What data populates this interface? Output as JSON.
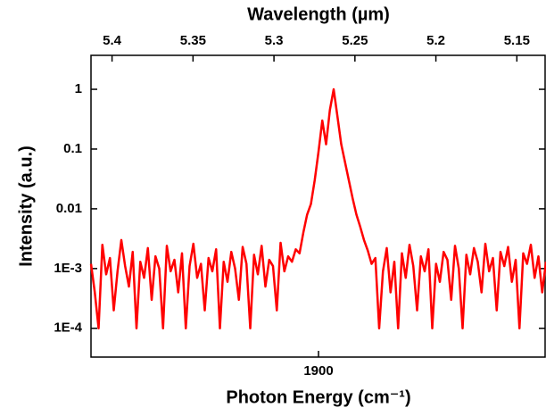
{
  "chart_data": {
    "type": "line",
    "xlabel": "Photon Energy (cm⁻¹)",
    "x2label": "Wavelength (µm)",
    "ylabel": "Intensity (a.u.)",
    "xlim": [
      1840,
      1960
    ],
    "xticks": [
      1900
    ],
    "x2lim": [
      5.413,
      5.132
    ],
    "x2ticks": [
      5.4,
      5.35,
      5.3,
      5.25,
      5.2,
      5.15
    ],
    "ylog": true,
    "ylim": [
      3.3e-05,
      3.7
    ],
    "yticks": [
      {
        "value": 0.0001,
        "label": "1E-4"
      },
      {
        "value": 0.001,
        "label": "1E-3"
      },
      0.01,
      0.1,
      1
    ],
    "color": "#ff0000",
    "x": [
      1840,
      1841,
      1842,
      1843,
      1844,
      1845,
      1846,
      1847,
      1848,
      1849,
      1850,
      1851,
      1852,
      1853,
      1854,
      1855,
      1856,
      1857,
      1858,
      1859,
      1860,
      1861,
      1862,
      1863,
      1864,
      1865,
      1866,
      1867,
      1868,
      1869,
      1870,
      1871,
      1872,
      1873,
      1874,
      1875,
      1876,
      1877,
      1878,
      1879,
      1880,
      1881,
      1882,
      1883,
      1884,
      1885,
      1886,
      1887,
      1888,
      1889,
      1890,
      1891,
      1892,
      1893,
      1894,
      1895,
      1896,
      1897,
      1898,
      1899,
      1900,
      1901,
      1902,
      1903,
      1904,
      1905,
      1906,
      1907,
      1908,
      1909,
      1910,
      1911,
      1912,
      1913,
      1914,
      1915,
      1916,
      1917,
      1918,
      1919,
      1920,
      1921,
      1922,
      1923,
      1924,
      1925,
      1926,
      1927,
      1928,
      1929,
      1930,
      1931,
      1932,
      1933,
      1934,
      1935,
      1936,
      1937,
      1938,
      1939,
      1940,
      1941,
      1942,
      1943,
      1944,
      1945,
      1946,
      1947,
      1948,
      1949,
      1950,
      1951,
      1952,
      1953,
      1954,
      1955,
      1956,
      1957,
      1958,
      1959,
      1960
    ],
    "values": [
      0.0012,
      0.0004,
      0.0001,
      0.0025,
      0.0008,
      0.0015,
      0.0002,
      0.0009,
      0.003,
      0.0011,
      0.0005,
      0.0019,
      0.0001,
      0.0013,
      0.0007,
      0.0022,
      0.0003,
      0.0016,
      0.001,
      0.0001,
      0.0024,
      0.0009,
      0.0014,
      0.0004,
      0.0018,
      0.0001,
      0.0011,
      0.0026,
      0.0007,
      0.0012,
      0.0002,
      0.0015,
      0.0009,
      0.0021,
      0.0001,
      0.0013,
      0.0006,
      0.0019,
      0.001,
      0.0003,
      0.0023,
      0.0012,
      0.0001,
      0.0017,
      0.0008,
      0.0024,
      0.0005,
      0.0014,
      0.0011,
      0.0002,
      0.0027,
      0.0009,
      0.0016,
      0.0013,
      0.0021,
      0.0018,
      0.004,
      0.008,
      0.012,
      0.03,
      0.09,
      0.3,
      0.12,
      0.45,
      1,
      0.35,
      0.12,
      0.06,
      0.03,
      0.015,
      0.008,
      0.005,
      0.003,
      0.002,
      0.0012,
      0.0015,
      0.0001,
      0.0009,
      0.0022,
      0.0004,
      0.0013,
      0.0001,
      0.0018,
      0.0007,
      0.0025,
      0.0011,
      0.0002,
      0.0016,
      0.0009,
      0.0021,
      0.0001,
      0.0012,
      0.0006,
      0.0019,
      0.0014,
      0.0003,
      0.0024,
      0.001,
      0.0001,
      0.0017,
      0.0008,
      0.0022,
      0.0013,
      0.0004,
      0.0026,
      0.0009,
      0.0015,
      0.0002,
      0.0019,
      0.0011,
      0.0023,
      0.0006,
      0.0014,
      0.0001,
      0.0018,
      0.0012,
      0.0025,
      0.0007,
      0.0016,
      0.0004,
      0.0013
    ]
  }
}
